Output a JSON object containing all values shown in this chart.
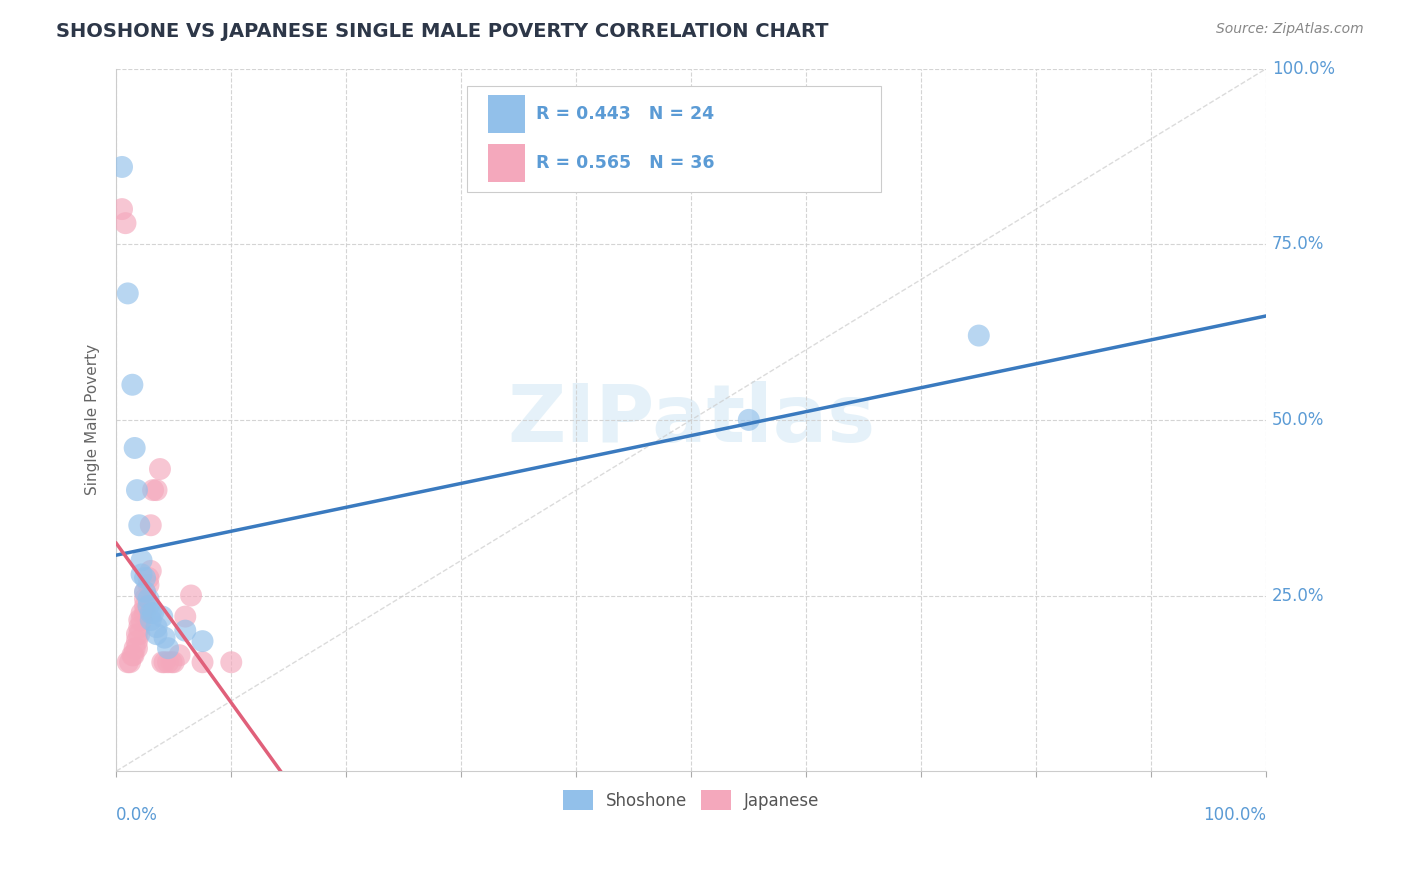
{
  "title": "SHOSHONE VS JAPANESE SINGLE MALE POVERTY CORRELATION CHART",
  "source": "Source: ZipAtlas.com",
  "ylabel": "Single Male Poverty",
  "xlim": [
    0.0,
    1.0
  ],
  "ylim": [
    0.0,
    1.0
  ],
  "y_tick_positions": [
    0.25,
    0.5,
    0.75,
    1.0
  ],
  "y_tick_labels": [
    "25.0%",
    "50.0%",
    "75.0%",
    "100.0%"
  ],
  "background_color": "#ffffff",
  "grid_color": "#d0d0d0",
  "shoshone_color": "#92c0ea",
  "japanese_color": "#f4a8bc",
  "shoshone_line_color": "#3a7abf",
  "japanese_line_color": "#e0607a",
  "R_shoshone": 0.443,
  "N_shoshone": 24,
  "R_japanese": 0.565,
  "N_japanese": 36,
  "shoshone_points": [
    [
      0.005,
      0.86
    ],
    [
      0.01,
      0.68
    ],
    [
      0.014,
      0.55
    ],
    [
      0.016,
      0.46
    ],
    [
      0.018,
      0.4
    ],
    [
      0.02,
      0.35
    ],
    [
      0.022,
      0.3
    ],
    [
      0.022,
      0.28
    ],
    [
      0.025,
      0.275
    ],
    [
      0.025,
      0.255
    ],
    [
      0.028,
      0.245
    ],
    [
      0.028,
      0.235
    ],
    [
      0.03,
      0.225
    ],
    [
      0.03,
      0.215
    ],
    [
      0.032,
      0.225
    ],
    [
      0.035,
      0.205
    ],
    [
      0.035,
      0.195
    ],
    [
      0.04,
      0.22
    ],
    [
      0.042,
      0.19
    ],
    [
      0.045,
      0.175
    ],
    [
      0.06,
      0.2
    ],
    [
      0.075,
      0.185
    ],
    [
      0.55,
      0.5
    ],
    [
      0.75,
      0.62
    ]
  ],
  "japanese_points": [
    [
      0.005,
      0.8
    ],
    [
      0.008,
      0.78
    ],
    [
      0.01,
      0.155
    ],
    [
      0.012,
      0.155
    ],
    [
      0.014,
      0.165
    ],
    [
      0.015,
      0.165
    ],
    [
      0.016,
      0.175
    ],
    [
      0.018,
      0.175
    ],
    [
      0.018,
      0.185
    ],
    [
      0.018,
      0.195
    ],
    [
      0.02,
      0.195
    ],
    [
      0.02,
      0.205
    ],
    [
      0.02,
      0.215
    ],
    [
      0.022,
      0.215
    ],
    [
      0.022,
      0.225
    ],
    [
      0.025,
      0.225
    ],
    [
      0.025,
      0.235
    ],
    [
      0.025,
      0.245
    ],
    [
      0.025,
      0.255
    ],
    [
      0.028,
      0.265
    ],
    [
      0.028,
      0.275
    ],
    [
      0.03,
      0.285
    ],
    [
      0.03,
      0.35
    ],
    [
      0.032,
      0.4
    ],
    [
      0.035,
      0.4
    ],
    [
      0.038,
      0.43
    ],
    [
      0.04,
      0.155
    ],
    [
      0.042,
      0.155
    ],
    [
      0.045,
      0.155
    ],
    [
      0.048,
      0.155
    ],
    [
      0.05,
      0.155
    ],
    [
      0.055,
      0.165
    ],
    [
      0.06,
      0.22
    ],
    [
      0.065,
      0.25
    ],
    [
      0.075,
      0.155
    ],
    [
      0.1,
      0.155
    ]
  ]
}
